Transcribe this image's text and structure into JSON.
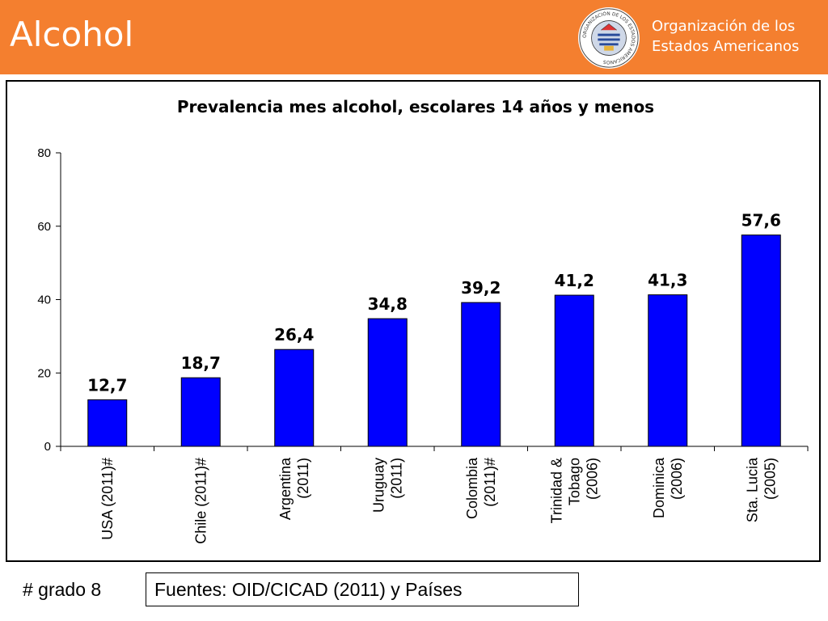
{
  "slide": {
    "title": "Alcohol"
  },
  "organization": {
    "name_line1": "Organización de los",
    "name_line2": "Estados Americanos",
    "seal_text": "ORGANIZACIÓN DE LOS ESTADOS AMERICANOS"
  },
  "colors": {
    "header": "#f47f2f",
    "bar": "#0000ff"
  },
  "chart_data": {
    "type": "bar",
    "title": "Prevalencia mes alcohol, escolares 14 años y menos",
    "xlabel": "",
    "ylabel": "",
    "ylim": [
      0,
      80
    ],
    "yticks": [
      0,
      20,
      40,
      60,
      80
    ],
    "categories": [
      [
        "USA (2011)#"
      ],
      [
        "Chile (2011)#"
      ],
      [
        "Argentina",
        "(2011)"
      ],
      [
        "Uruguay",
        "(2011)"
      ],
      [
        "Colombia",
        "(2011)#"
      ],
      [
        "Trinidad &",
        "Tobago",
        "(2006)"
      ],
      [
        "Dominica",
        "(2006)"
      ],
      [
        "Sta. Lucia",
        "(2005)"
      ]
    ],
    "values": [
      12.7,
      18.7,
      26.4,
      34.8,
      39.2,
      41.2,
      41.3,
      57.6
    ],
    "data_labels": [
      "12,7",
      "18,7",
      "26,4",
      "34,8",
      "39,2",
      "41,2",
      "41,3",
      "57,6"
    ],
    "grid": false,
    "legend": "none"
  },
  "footer": {
    "note": "# grado 8",
    "source": "Fuentes: OID/CICAD (2011) y Países"
  }
}
